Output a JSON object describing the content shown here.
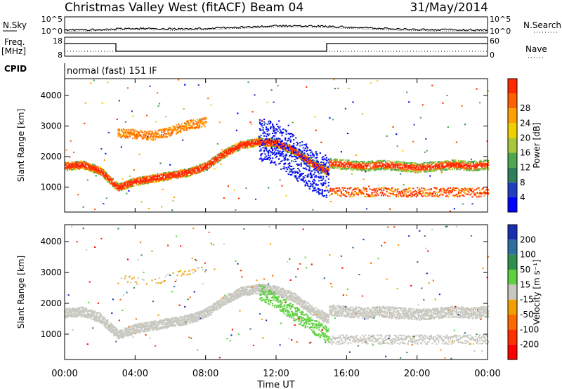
{
  "header": {
    "station": "Christmas Valley West (fitACF)",
    "beam": "Beam 04",
    "date": "31/May/2014"
  },
  "noise_panel": {
    "left_label": "N.Sky",
    "right_label": "N.Search",
    "left_ticks": [
      "10^5",
      "10^0"
    ],
    "right_ticks": [
      "10^5",
      "10^0"
    ]
  },
  "freq_panel": {
    "left_label_line1": "Freq.",
    "left_label_line2": "[MHz]",
    "right_label": "Nave",
    "left_ticks": [
      "18",
      "8"
    ],
    "right_ticks": [
      "60",
      "0"
    ]
  },
  "cpid": {
    "label": "CPID",
    "program": "normal (fast) 151 IF"
  },
  "chart_data": [
    {
      "type": "heatmap",
      "name": "Power",
      "xlabel": "Time UT",
      "ylabel": "Slant Range [km]",
      "xlim": [
        "00:00",
        "24:00"
      ],
      "ylim": [
        180,
        4550
      ],
      "x_ticks": [
        "00:00",
        "04:00",
        "08:00",
        "12:00",
        "16:00",
        "20:00",
        "00:00"
      ],
      "y_ticks": [
        1000,
        2000,
        3000,
        4000
      ],
      "colorbar": {
        "label": "Power [dB]",
        "ticks": [
          "4",
          "8",
          "12",
          "16",
          "20",
          "24",
          "28"
        ],
        "colors": [
          "#0000ff",
          "#1f3fbf",
          "#2f7f5f",
          "#4fa64f",
          "#a8c83c",
          "#f0d000",
          "#ffa000",
          "#ff6000",
          "#ff2a00"
        ]
      },
      "bands": [
        {
          "feature": "lower ionospheric band",
          "points": [
            [
              0,
              1700
            ],
            [
              1,
              1750
            ],
            [
              2,
              1550
            ],
            [
              3,
              1000
            ],
            [
              4,
              1200
            ],
            [
              5,
              1300
            ],
            [
              6,
              1400
            ],
            [
              7,
              1500
            ],
            [
              8,
              1700
            ],
            [
              9,
              2100
            ],
            [
              10,
              2400
            ],
            [
              11,
              2500
            ],
            [
              12,
              2450
            ],
            [
              13,
              2200
            ],
            [
              14,
              1800
            ],
            [
              15,
              1500
            ]
          ],
          "power_db": 24
        },
        {
          "feature": "upper band",
          "points": [
            [
              3,
              2800
            ],
            [
              4,
              2750
            ],
            [
              5,
              2700
            ],
            [
              6,
              2850
            ],
            [
              7,
              3050
            ],
            [
              8,
              3150
            ]
          ],
          "power_db": 20
        },
        {
          "feature": "afternoon band",
          "points": [
            [
              15,
              1800
            ],
            [
              16,
              1750
            ],
            [
              17,
              1700
            ],
            [
              18,
              1750
            ],
            [
              19,
              1700
            ],
            [
              20,
              1650
            ],
            [
              21,
              1700
            ],
            [
              22,
              1750
            ],
            [
              23,
              1700
            ],
            [
              24,
              1750
            ]
          ],
          "power_db": 28
        },
        {
          "feature": "blue scatter",
          "points": [
            [
              11,
              2600
            ],
            [
              12,
              2400
            ],
            [
              13,
              2000
            ],
            [
              14,
              1600
            ],
            [
              15,
              1300
            ]
          ],
          "power_db": 6
        }
      ]
    },
    {
      "type": "heatmap",
      "name": "Velocity",
      "xlabel": "Time UT",
      "ylabel": "Slant Range [km]",
      "xlim": [
        "00:00",
        "24:00"
      ],
      "ylim": [
        180,
        4550
      ],
      "x_ticks": [
        "00:00",
        "04:00",
        "08:00",
        "12:00",
        "16:00",
        "20:00",
        "00:00"
      ],
      "y_ticks": [
        1000,
        2000,
        3000,
        4000
      ],
      "colorbar": {
        "label": "Velocity [m s⁻¹]",
        "ticks": [
          "200",
          "100",
          "50",
          "15",
          "-15",
          "-50",
          "-100",
          "-200"
        ],
        "colors": [
          "#1a2fb0",
          "#2f6f9f",
          "#2f8f4f",
          "#5fd040",
          "#c8c8c0",
          "#f0a000",
          "#ff6a00",
          "#ff3000",
          "#ff0000"
        ]
      },
      "dominant_value": "-15 to 15 m/s (ground scatter)",
      "green_feature": {
        "points": [
          [
            11,
            2400
          ],
          [
            12,
            2100
          ],
          [
            13,
            1700
          ],
          [
            14,
            1300
          ],
          [
            15,
            1000
          ]
        ],
        "velocity": "15 to 50 m/s"
      }
    }
  ]
}
